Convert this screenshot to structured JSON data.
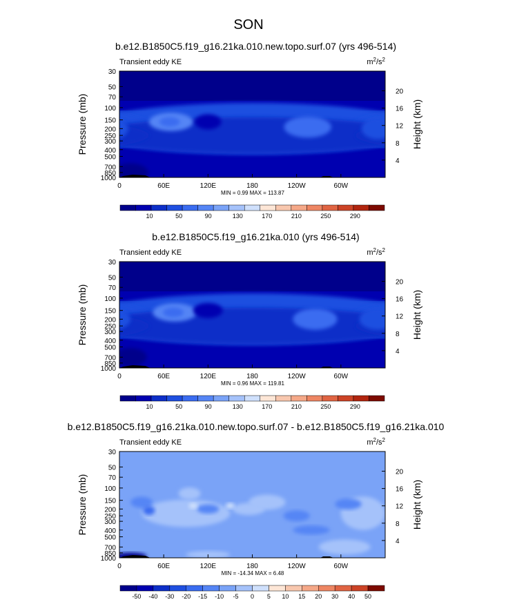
{
  "figure": {
    "title": "SON"
  },
  "chart_data": [
    {
      "type": "heatmap",
      "title": "b.e12.B1850C5.f19_g16.21ka.010.new.topo.surf.07 (yrs 496-514)",
      "left_label": "Transient eddy KE",
      "units": "m2/s2",
      "units_base": "m",
      "units_exp1": "2",
      "units_mid": "/s",
      "units_exp2": "2",
      "ylabel": "Pressure (mb)",
      "ylabel_right": "Height (km)",
      "x_ticks": [
        "0",
        "60E",
        "120E",
        "180",
        "120W",
        "60W"
      ],
      "x_tick_lon": [
        0,
        60,
        120,
        180,
        240,
        300
      ],
      "xlim": [
        0,
        360
      ],
      "y_ticks": [
        "30",
        "50",
        "70",
        "100",
        "150",
        "200",
        "250",
        "300",
        "400",
        "500",
        "700",
        "850",
        "1000"
      ],
      "y_tick_p": [
        30,
        50,
        70,
        100,
        150,
        200,
        250,
        300,
        400,
        500,
        700,
        850,
        1000
      ],
      "ylim": [
        1000,
        30
      ],
      "height_ticks": [
        "4",
        "8",
        "12",
        "16",
        "20"
      ],
      "height_tick_km": [
        4,
        8,
        12,
        16,
        20
      ],
      "stats": "MIN =   0.99  MAX = 113.87",
      "min": 0.99,
      "max": 113.87,
      "background_level": 10,
      "blobs": [
        {
          "lon": 180,
          "p": 200,
          "rx": 230,
          "rp": 0.85,
          "v": 35
        },
        {
          "lon": 180,
          "p": 250,
          "rx": 220,
          "rp": 0.6,
          "v": 25
        },
        {
          "lon": 70,
          "p": 160,
          "rx": 30,
          "rp": 0.3,
          "v": 55
        },
        {
          "lon": 68,
          "p": 160,
          "rx": 14,
          "rp": 0.16,
          "v": 40
        },
        {
          "lon": 255,
          "p": 190,
          "rx": 32,
          "rp": 0.35,
          "v": 45
        },
        {
          "lon": 350,
          "p": 200,
          "rx": 22,
          "rp": 0.35,
          "v": 35
        },
        {
          "lon": 120,
          "p": 160,
          "rx": 18,
          "rp": 0.25,
          "v": 12
        }
      ],
      "low_regions": [
        {
          "lon": 15,
          "p": 850,
          "rx": 24,
          "rp": 0.3
        }
      ]
    },
    {
      "type": "heatmap",
      "title": "b.e12.B1850C5.f19_g16.21ka.010 (yrs 496-514)",
      "left_label": "Transient eddy KE",
      "units": "m2/s2",
      "units_base": "m",
      "units_exp1": "2",
      "units_mid": "/s",
      "units_exp2": "2",
      "ylabel": "Pressure (mb)",
      "ylabel_right": "Height (km)",
      "x_ticks": [
        "0",
        "60E",
        "120E",
        "180",
        "120W",
        "60W"
      ],
      "x_tick_lon": [
        0,
        60,
        120,
        180,
        240,
        300
      ],
      "xlim": [
        0,
        360
      ],
      "y_ticks": [
        "30",
        "50",
        "70",
        "100",
        "150",
        "200",
        "250",
        "300",
        "400",
        "500",
        "700",
        "850",
        "1000"
      ],
      "y_tick_p": [
        30,
        50,
        70,
        100,
        150,
        200,
        250,
        300,
        400,
        500,
        700,
        850,
        1000
      ],
      "ylim": [
        1000,
        30
      ],
      "height_ticks": [
        "4",
        "8",
        "12",
        "16",
        "20"
      ],
      "height_tick_km": [
        4,
        8,
        12,
        16,
        20
      ],
      "stats": "MIN =   0.96  MAX = 119.81",
      "min": 0.96,
      "max": 119.81,
      "background_level": 10,
      "blobs": [
        {
          "lon": 180,
          "p": 200,
          "rx": 230,
          "rp": 0.85,
          "v": 35
        },
        {
          "lon": 180,
          "p": 250,
          "rx": 220,
          "rp": 0.6,
          "v": 25
        },
        {
          "lon": 75,
          "p": 160,
          "rx": 30,
          "rp": 0.3,
          "v": 58
        },
        {
          "lon": 73,
          "p": 160,
          "rx": 14,
          "rp": 0.16,
          "v": 45
        },
        {
          "lon": 265,
          "p": 200,
          "rx": 30,
          "rp": 0.35,
          "v": 45
        },
        {
          "lon": 350,
          "p": 200,
          "rx": 25,
          "rp": 0.35,
          "v": 38
        },
        {
          "lon": 120,
          "p": 150,
          "rx": 20,
          "rp": 0.25,
          "v": 12
        }
      ],
      "low_regions": [
        {
          "lon": 15,
          "p": 700,
          "rx": 22,
          "rp": 0.3
        }
      ]
    },
    {
      "type": "heatmap",
      "title": "b.e12.B1850C5.f19_g16.21ka.010.new.topo.surf.07 - b.e12.B1850C5.f19_g16.21ka.010",
      "left_label": "Transient eddy KE",
      "units": "m2/s2",
      "units_base": "m",
      "units_exp1": "2",
      "units_mid": "/s",
      "units_exp2": "2",
      "ylabel": "Pressure (mb)",
      "ylabel_right": "Height (km)",
      "x_ticks": [
        "0",
        "60E",
        "120E",
        "180",
        "120W",
        "60W"
      ],
      "x_tick_lon": [
        0,
        60,
        120,
        180,
        240,
        300
      ],
      "xlim": [
        0,
        360
      ],
      "y_ticks": [
        "30",
        "50",
        "70",
        "100",
        "150",
        "200",
        "250",
        "300",
        "400",
        "500",
        "700",
        "850",
        "1000"
      ],
      "y_tick_p": [
        30,
        50,
        70,
        100,
        150,
        200,
        250,
        300,
        400,
        500,
        700,
        850,
        1000
      ],
      "ylim": [
        1000,
        30
      ],
      "height_ticks": [
        "4",
        "8",
        "12",
        "16",
        "20"
      ],
      "height_tick_km": [
        4,
        8,
        12,
        16,
        20
      ],
      "stats": "MIN = -14.34  MAX =   6.48",
      "min": -14.34,
      "max": 6.48,
      "background_level": -2.5,
      "patches": [
        {
          "lon": 90,
          "p": 230,
          "rx": 60,
          "rp": 0.45,
          "v": 2.5
        },
        {
          "lon": 330,
          "p": 230,
          "rx": 30,
          "rp": 0.55,
          "v": 2.5
        },
        {
          "lon": 200,
          "p": 160,
          "rx": 25,
          "rp": 0.25,
          "v": 2.5
        },
        {
          "lon": 175,
          "p": 200,
          "rx": 22,
          "rp": 0.2,
          "v": 2.5
        },
        {
          "lon": 95,
          "p": 120,
          "rx": 15,
          "rp": 0.2,
          "v": 2.5
        },
        {
          "lon": 305,
          "p": 700,
          "rx": 35,
          "rp": 0.25,
          "v": 2.5
        },
        {
          "lon": 120,
          "p": 900,
          "rx": 30,
          "rp": 0.12,
          "v": 2.5
        },
        {
          "lon": 30,
          "p": 160,
          "rx": 15,
          "rp": 0.18,
          "v": -7.5
        },
        {
          "lon": 40,
          "p": 210,
          "rx": 8,
          "rp": 0.15,
          "v": -12.5
        },
        {
          "lon": 310,
          "p": 170,
          "rx": 18,
          "rp": 0.18,
          "v": -7.5
        },
        {
          "lon": 240,
          "p": 250,
          "rx": 18,
          "rp": 0.18,
          "v": -7.5
        },
        {
          "lon": 260,
          "p": 400,
          "rx": 25,
          "rp": 0.15,
          "v": -7.5
        },
        {
          "lon": 120,
          "p": 200,
          "rx": 15,
          "rp": 0.15,
          "v": -7.5
        },
        {
          "lon": 100,
          "p": 180,
          "rx": 6,
          "rp": 0.1,
          "v": 7.5
        },
        {
          "lon": 150,
          "p": 180,
          "rx": 6,
          "rp": 0.1,
          "v": 7.5
        }
      ],
      "low_regions": [
        {
          "lon": 15,
          "p": 950,
          "rx": 22,
          "rp": 0.12
        }
      ]
    }
  ],
  "colorbars": [
    {
      "labels": [
        "10",
        "50",
        "90",
        "130",
        "170",
        "210",
        "250",
        "290"
      ],
      "colors": [
        "#00008b",
        "#0000b0",
        "#0d2fc8",
        "#1f4fe0",
        "#3a6cf0",
        "#5585f5",
        "#7aa3f7",
        "#a5c2fa",
        "#cfe0fc",
        "#fde6d6",
        "#f8c7ae",
        "#f5a888",
        "#ee8663",
        "#e06443",
        "#cc4326",
        "#b1250f",
        "#7d0a00"
      ],
      "thresholds": [
        0,
        10,
        20,
        30,
        40,
        50,
        60,
        70,
        90,
        110,
        130,
        150,
        170,
        190,
        210,
        230,
        250,
        270,
        290
      ]
    },
    {
      "labels": [
        "10",
        "50",
        "90",
        "130",
        "170",
        "210",
        "250",
        "290"
      ],
      "colors": [
        "#00008b",
        "#0000b0",
        "#0d2fc8",
        "#1f4fe0",
        "#3a6cf0",
        "#5585f5",
        "#7aa3f7",
        "#a5c2fa",
        "#cfe0fc",
        "#fde6d6",
        "#f8c7ae",
        "#f5a888",
        "#ee8663",
        "#e06443",
        "#cc4326",
        "#b1250f",
        "#7d0a00"
      ],
      "thresholds": [
        0,
        10,
        20,
        30,
        40,
        50,
        60,
        70,
        90,
        110,
        130,
        150,
        170,
        190,
        210,
        230,
        250,
        270,
        290
      ]
    },
    {
      "labels": [
        "-50",
        "-40",
        "-30",
        "-20",
        "-15",
        "-10",
        "-5",
        "0",
        "5",
        "10",
        "15",
        "20",
        "30",
        "40",
        "50"
      ],
      "colors": [
        "#00008b",
        "#0000b0",
        "#0d2fc8",
        "#1f4fe0",
        "#3a6cf0",
        "#5585f5",
        "#7aa3f7",
        "#a5c2fa",
        "#cfe0fc",
        "#fde6d6",
        "#f8c7ae",
        "#f5a888",
        "#ee8663",
        "#e06443",
        "#cc4326",
        "#7d0a00"
      ],
      "thresholds": [
        -50,
        -40,
        -30,
        -20,
        -15,
        -10,
        -5,
        0,
        5,
        10,
        15,
        20,
        30,
        40,
        50
      ]
    }
  ]
}
